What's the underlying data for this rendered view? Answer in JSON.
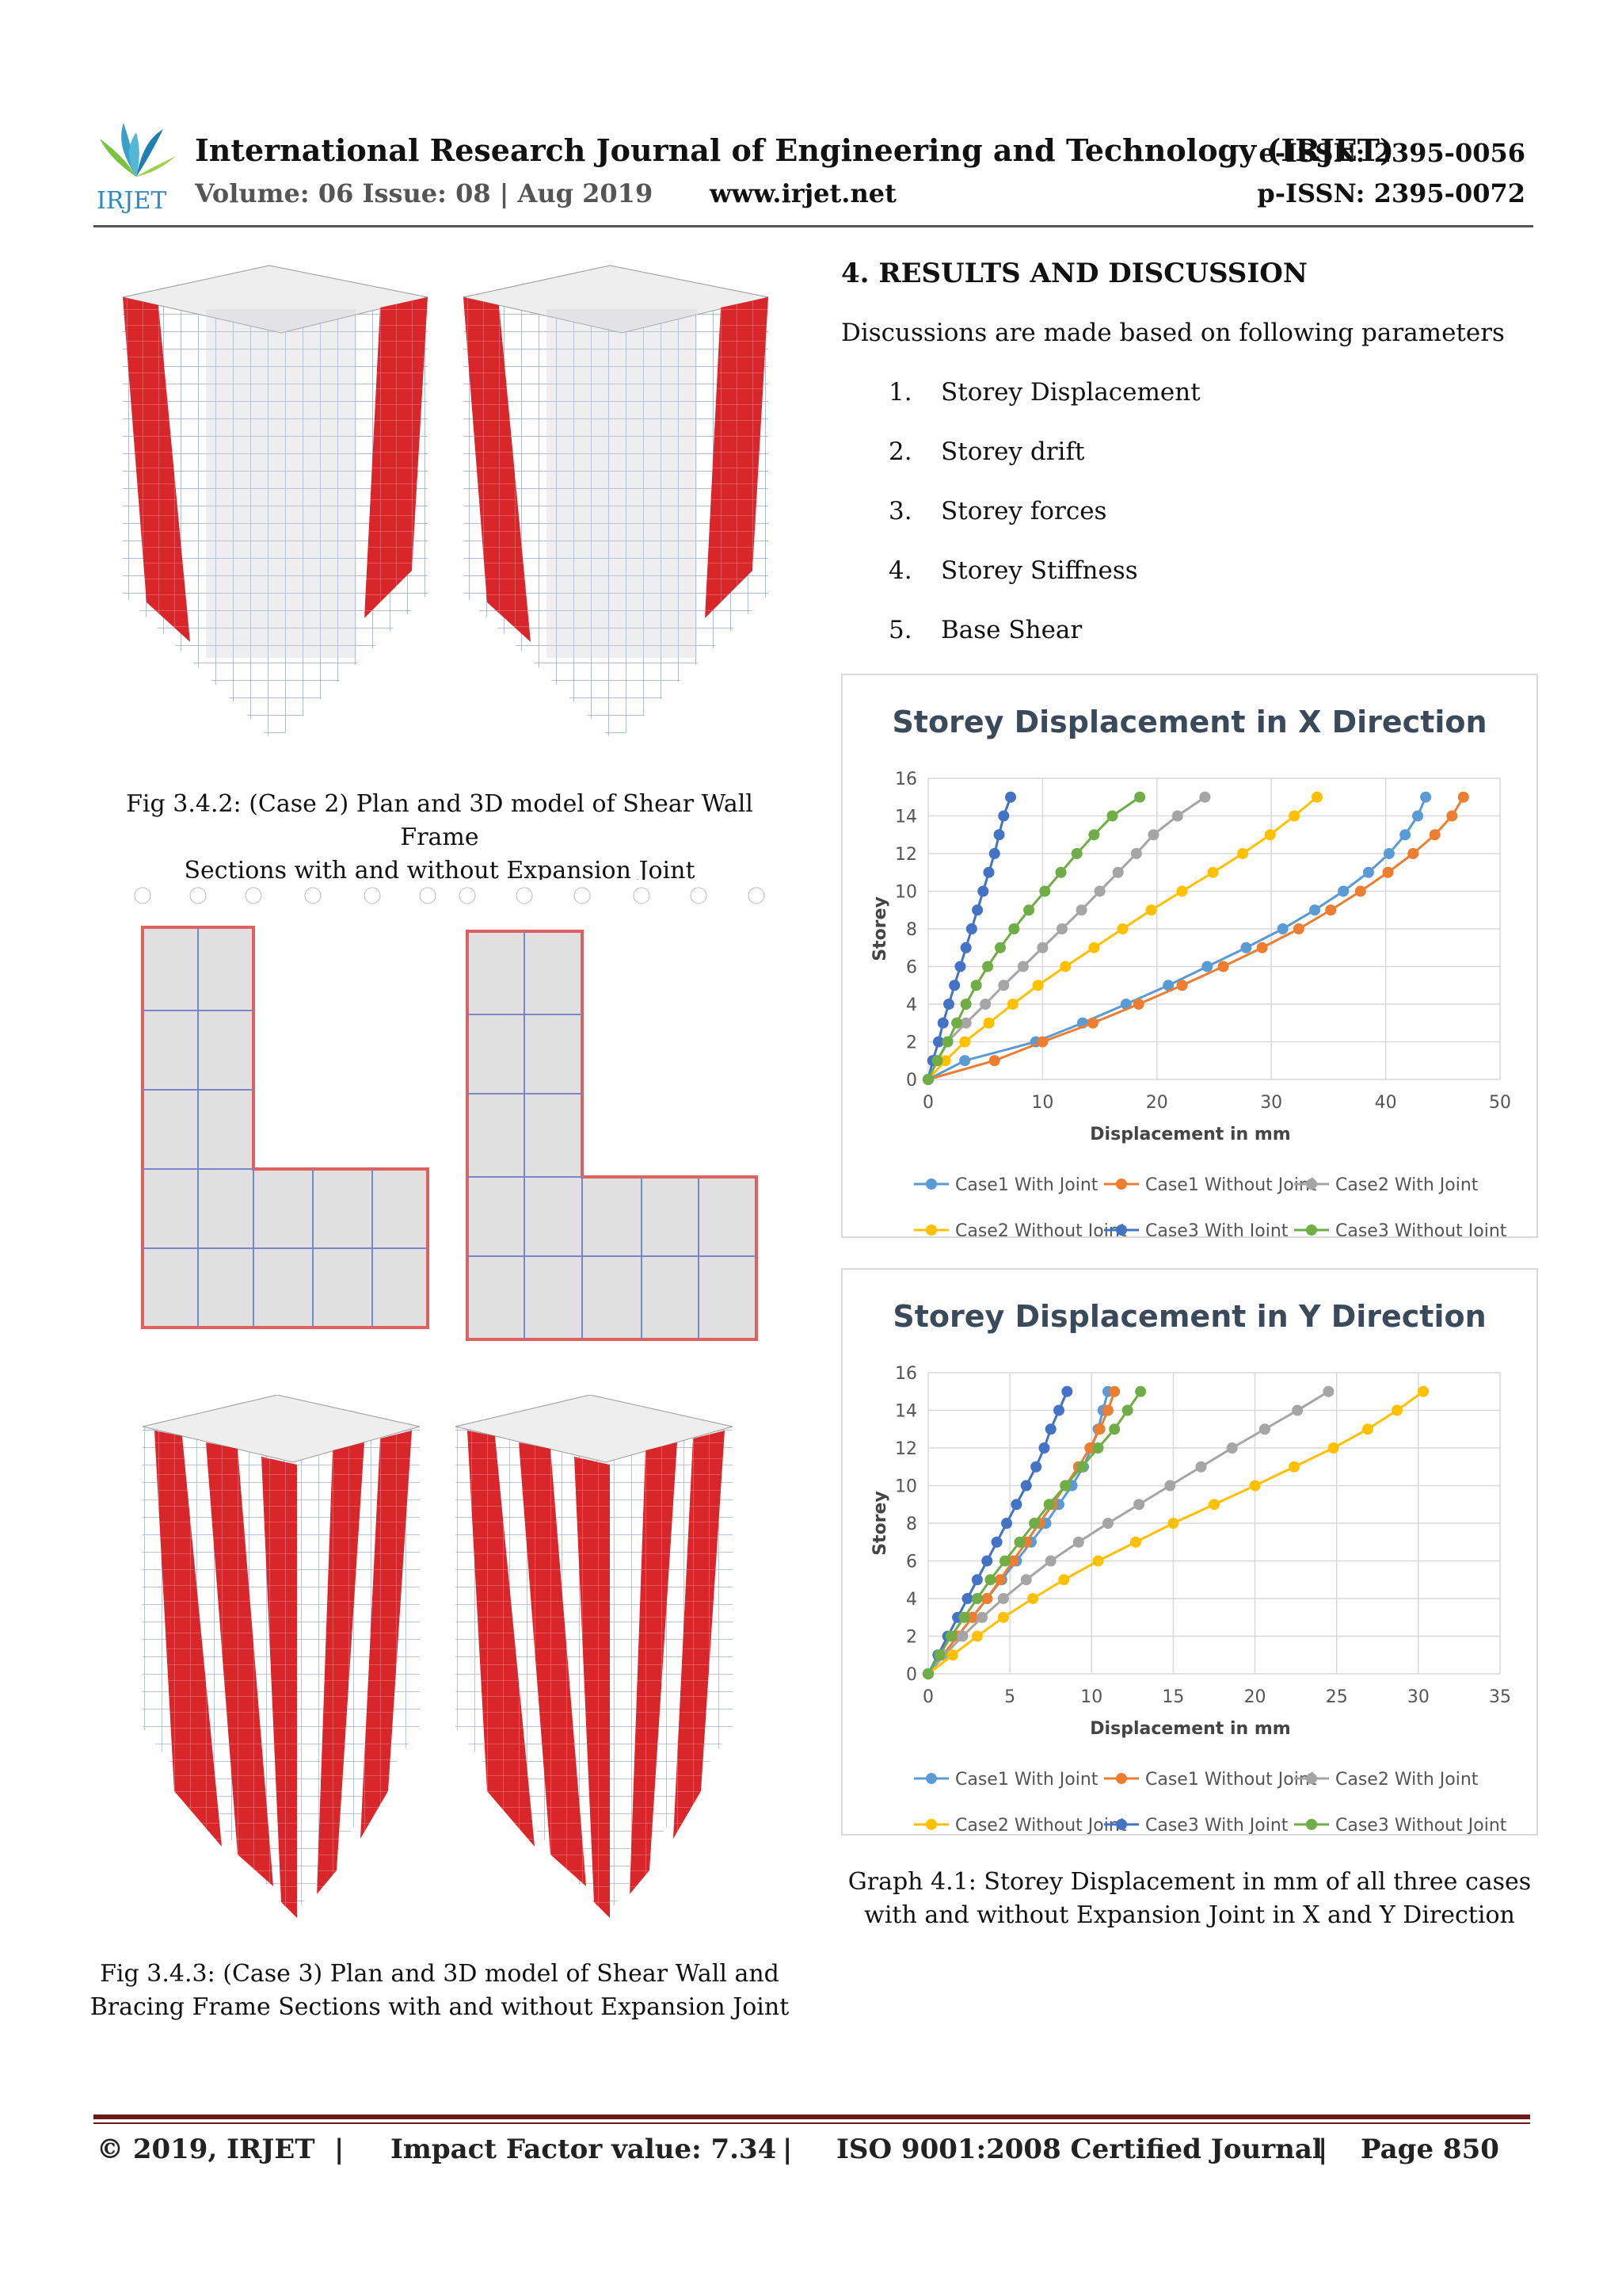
{
  "header": {
    "logo_text": "IRJET",
    "journal_title": "International Research Journal of Engineering and Technology (IRJET)",
    "eissn": "e-ISSN: 2395-0056",
    "volume": "Volume: 06 Issue: 08 | Aug 2019",
    "website": "www.irjet.net",
    "pissn": "p-ISSN: 2395-0072"
  },
  "figures": {
    "fig342_caption_line1": "Fig 3.4.2: (Case 2) Plan and 3D model of Shear Wall Frame",
    "fig342_caption_line2": "Sections with and without Expansion Joint",
    "fig343_caption_line1": "Fig 3.4.3: (Case 3) Plan and 3D model of Shear Wall and",
    "fig343_caption_line2": "Bracing Frame Sections with and without Expansion Joint"
  },
  "section": {
    "heading": "4. RESULTS AND DISCUSSION",
    "intro": "Discussions are made based on following parameters",
    "parameters": [
      {
        "num": "1.",
        "label": "Storey Displacement"
      },
      {
        "num": "2.",
        "label": "Storey drift"
      },
      {
        "num": "3.",
        "label": "Storey forces"
      },
      {
        "num": "4.",
        "label": "Storey Stiffness"
      },
      {
        "num": "5.",
        "label": "Base Shear"
      }
    ],
    "graph_caption_line1": "Graph 4.1: Storey Displacement in mm of all three cases",
    "graph_caption_line2": "with and without Expansion Joint in X and Y Direction"
  },
  "chart_data": [
    {
      "type": "line",
      "title": "Storey Displacement in X Direction",
      "xlabel": "Displacement in mm",
      "ylabel": "Storey",
      "xlim": [
        0,
        50
      ],
      "ylim": [
        0,
        16
      ],
      "xticks": [
        0,
        10,
        20,
        30,
        40,
        50
      ],
      "yticks": [
        0,
        2,
        4,
        6,
        8,
        10,
        12,
        14,
        16
      ],
      "grid": true,
      "legend": "bottom",
      "storeys": [
        0,
        1,
        2,
        3,
        4,
        5,
        6,
        7,
        8,
        9,
        10,
        11,
        12,
        13,
        14,
        15
      ],
      "series": [
        {
          "name": "Case1 With Joint",
          "color": "#5b9bd5",
          "x": [
            0,
            3.2,
            9.4,
            13.5,
            17.3,
            21,
            24.4,
            27.8,
            31,
            33.8,
            36.3,
            38.5,
            40.3,
            41.7,
            42.8,
            43.5
          ]
        },
        {
          "name": "Case1 Without Joint",
          "color": "#ed7d31",
          "x": [
            0,
            5.8,
            10,
            14.4,
            18.4,
            22.2,
            25.8,
            29.2,
            32.4,
            35.2,
            37.8,
            40.2,
            42.4,
            44.3,
            45.8,
            46.8
          ]
        },
        {
          "name": "Case2 With Joint",
          "color": "#a5a5a5",
          "x": [
            0,
            0.8,
            1.7,
            3.3,
            5,
            6.6,
            8.3,
            10,
            11.7,
            13.4,
            15,
            16.6,
            18.2,
            19.7,
            21.8,
            24.2
          ]
        },
        {
          "name": "Case2 Without Joint",
          "color": "#ffc000",
          "x": [
            0,
            1.5,
            3.2,
            5.3,
            7.4,
            9.6,
            12,
            14.5,
            17,
            19.5,
            22.2,
            24.9,
            27.5,
            29.9,
            32,
            34
          ]
        },
        {
          "name": "Case3 With Joint",
          "color": "#4472c4",
          "x": [
            0,
            0.4,
            0.9,
            1.3,
            1.8,
            2.3,
            2.8,
            3.3,
            3.8,
            4.3,
            4.8,
            5.3,
            5.8,
            6.2,
            6.6,
            7.2
          ]
        },
        {
          "name": "Case3 Without Joint",
          "color": "#70ad47",
          "x": [
            0,
            0.8,
            1.7,
            2.5,
            3.3,
            4.2,
            5.2,
            6.3,
            7.5,
            8.8,
            10.2,
            11.6,
            13,
            14.5,
            16.1,
            18.5
          ]
        }
      ]
    },
    {
      "type": "line",
      "title": "Storey Displacement in Y Direction",
      "xlabel": "Displacement in mm",
      "ylabel": "Storey",
      "xlim": [
        0,
        35
      ],
      "ylim": [
        0,
        16
      ],
      "xticks": [
        0,
        5,
        10,
        15,
        20,
        25,
        30,
        35
      ],
      "yticks": [
        0,
        2,
        4,
        6,
        8,
        10,
        12,
        14,
        16
      ],
      "grid": true,
      "legend": "bottom",
      "storeys": [
        0,
        1,
        2,
        3,
        4,
        5,
        6,
        7,
        8,
        9,
        10,
        11,
        12,
        13,
        14,
        15
      ],
      "series": [
        {
          "name": "Case1 With Joint",
          "color": "#5b9bd5",
          "x": [
            0,
            0.9,
            1.8,
            2.7,
            3.6,
            4.5,
            5.4,
            6.3,
            7.2,
            8,
            8.8,
            9.5,
            10,
            10.4,
            10.7,
            11
          ]
        },
        {
          "name": "Case1 Without Joint",
          "color": "#ed7d31",
          "x": [
            0,
            0.9,
            1.8,
            2.7,
            3.6,
            4.4,
            5.2,
            6,
            6.8,
            7.6,
            8.4,
            9.2,
            9.9,
            10.5,
            11,
            11.4
          ]
        },
        {
          "name": "Case2 With Joint",
          "color": "#a5a5a5",
          "x": [
            0,
            1,
            2.1,
            3.3,
            4.6,
            6,
            7.5,
            9.2,
            11,
            12.9,
            14.8,
            16.7,
            18.6,
            20.6,
            22.6,
            24.5
          ]
        },
        {
          "name": "Case2 Without Joint",
          "color": "#ffc000",
          "x": [
            0,
            1.5,
            3,
            4.6,
            6.4,
            8.3,
            10.4,
            12.7,
            15,
            17.5,
            20,
            22.4,
            24.8,
            26.9,
            28.7,
            30.3
          ]
        },
        {
          "name": "Case3 With Joint",
          "color": "#4472c4",
          "x": [
            0,
            0.6,
            1.2,
            1.8,
            2.4,
            3,
            3.6,
            4.2,
            4.8,
            5.4,
            6,
            6.6,
            7.1,
            7.5,
            8,
            8.5
          ]
        },
        {
          "name": "Case3 Without Joint",
          "color": "#70ad47",
          "x": [
            0,
            0.7,
            1.4,
            2.2,
            3,
            3.8,
            4.7,
            5.6,
            6.5,
            7.4,
            8.4,
            9.4,
            10.4,
            11.4,
            12.2,
            13
          ]
        }
      ]
    }
  ],
  "footer": {
    "copyright": "© 2019, IRJET",
    "sep1": "|",
    "impact": "Impact Factor value: 7.34",
    "sep2": "|",
    "iso": "ISO 9001:2008 Certified Journal",
    "sep3": "|",
    "page": "Page 850"
  }
}
